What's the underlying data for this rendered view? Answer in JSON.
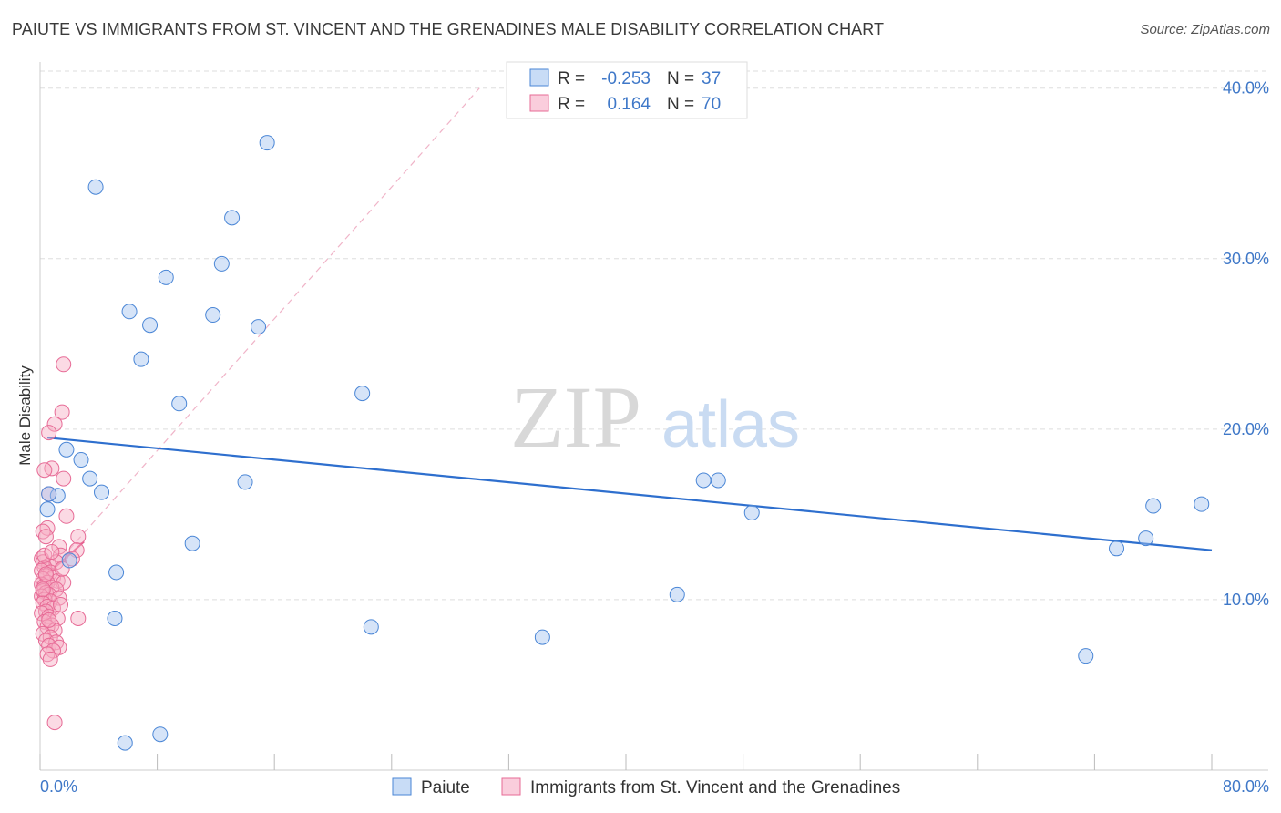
{
  "title": "PAIUTE VS IMMIGRANTS FROM ST. VINCENT AND THE GRENADINES MALE DISABILITY CORRELATION CHART",
  "source": "Source: ZipAtlas.com",
  "watermark": {
    "zip": "ZIP",
    "atlas": "atlas"
  },
  "colors": {
    "blue": "#4a86d6",
    "blue_fill": "rgba(164,196,240,0.45)",
    "blue_line": "#2e6fce",
    "pink": "#e76b96",
    "pink_fill": "rgba(246,172,196,0.45)",
    "pink_line": "#e55a8c",
    "axis_text": "#3f78c8",
    "grid": "#dedede"
  },
  "legend_box": {
    "rows": [
      {
        "r_label": "R =",
        "r_value": "-0.253",
        "n_label": "N =",
        "n_value": "37"
      },
      {
        "r_label": "R =",
        "r_value": "0.164",
        "n_label": "N =",
        "n_value": "70"
      }
    ]
  },
  "chart_data": {
    "type": "scatter",
    "title": "PAIUTE VS IMMIGRANTS FROM ST. VINCENT AND THE GRENADINES MALE DISABILITY CORRELATION CHART",
    "xlabel": "",
    "ylabel": "Male Disability",
    "xlim": [
      0,
      80
    ],
    "ylim": [
      0,
      41
    ],
    "x_tick_labels": [
      "0.0%",
      "80.0%"
    ],
    "y_ticks": [
      10,
      20,
      30,
      40
    ],
    "y_tick_labels": [
      "10.0%",
      "20.0%",
      "30.0%",
      "40.0%"
    ],
    "legend": [
      "Paiute",
      "Immigrants from St. Vincent and the Grenadines"
    ],
    "series": [
      {
        "name": "Paiute",
        "color": "#4a86d6",
        "R": -0.253,
        "N": 37,
        "trend": {
          "x": [
            0.5,
            80
          ],
          "y": [
            19.5,
            12.9
          ]
        },
        "points": [
          {
            "x": 3.8,
            "y": 34.2
          },
          {
            "x": 15.5,
            "y": 36.8
          },
          {
            "x": 13.1,
            "y": 32.4
          },
          {
            "x": 12.4,
            "y": 29.7
          },
          {
            "x": 8.6,
            "y": 28.9
          },
          {
            "x": 6.1,
            "y": 26.9
          },
          {
            "x": 7.5,
            "y": 26.1
          },
          {
            "x": 11.8,
            "y": 26.7
          },
          {
            "x": 14.9,
            "y": 26.0
          },
          {
            "x": 6.9,
            "y": 24.1
          },
          {
            "x": 9.5,
            "y": 21.5
          },
          {
            "x": 22.0,
            "y": 22.1
          },
          {
            "x": 1.2,
            "y": 16.1
          },
          {
            "x": 1.8,
            "y": 18.8
          },
          {
            "x": 2.8,
            "y": 18.2
          },
          {
            "x": 3.4,
            "y": 17.1
          },
          {
            "x": 4.2,
            "y": 16.3
          },
          {
            "x": 14.0,
            "y": 16.9
          },
          {
            "x": 45.3,
            "y": 17.0
          },
          {
            "x": 46.3,
            "y": 17.0
          },
          {
            "x": 0.5,
            "y": 15.3
          },
          {
            "x": 2.0,
            "y": 12.3
          },
          {
            "x": 10.4,
            "y": 13.3
          },
          {
            "x": 5.2,
            "y": 11.6
          },
          {
            "x": 48.6,
            "y": 15.1
          },
          {
            "x": 43.5,
            "y": 10.3
          },
          {
            "x": 76.0,
            "y": 15.5
          },
          {
            "x": 79.3,
            "y": 15.6
          },
          {
            "x": 75.5,
            "y": 13.6
          },
          {
            "x": 73.5,
            "y": 13.0
          },
          {
            "x": 5.1,
            "y": 8.9
          },
          {
            "x": 22.6,
            "y": 8.4
          },
          {
            "x": 34.3,
            "y": 7.8
          },
          {
            "x": 71.4,
            "y": 6.7
          },
          {
            "x": 5.8,
            "y": 1.6
          },
          {
            "x": 8.2,
            "y": 2.1
          },
          {
            "x": 0.6,
            "y": 16.2
          }
        ]
      },
      {
        "name": "Immigrants from St. Vincent and the Grenadines",
        "color": "#e76b96",
        "R": 0.164,
        "N": 70,
        "trend": {
          "x": [
            0.5,
            3.0
          ],
          "y": [
            11.5,
            13.4
          ]
        },
        "diagonal": {
          "x": [
            0.5,
            30.0
          ],
          "y": [
            11.5,
            40.0
          ]
        },
        "points": [
          {
            "x": 1.6,
            "y": 23.8
          },
          {
            "x": 1.5,
            "y": 21.0
          },
          {
            "x": 1.0,
            "y": 20.3
          },
          {
            "x": 0.6,
            "y": 19.8
          },
          {
            "x": 0.8,
            "y": 17.7
          },
          {
            "x": 0.3,
            "y": 17.6
          },
          {
            "x": 1.6,
            "y": 17.1
          },
          {
            "x": 0.6,
            "y": 16.2
          },
          {
            "x": 1.8,
            "y": 14.9
          },
          {
            "x": 0.5,
            "y": 14.2
          },
          {
            "x": 0.2,
            "y": 14.0
          },
          {
            "x": 0.4,
            "y": 13.7
          },
          {
            "x": 2.6,
            "y": 13.7
          },
          {
            "x": 1.3,
            "y": 13.1
          },
          {
            "x": 2.5,
            "y": 12.9
          },
          {
            "x": 1.4,
            "y": 12.6
          },
          {
            "x": 0.1,
            "y": 12.4
          },
          {
            "x": 0.2,
            "y": 12.2
          },
          {
            "x": 0.6,
            "y": 12.0
          },
          {
            "x": 1.1,
            "y": 12.2
          },
          {
            "x": 0.3,
            "y": 11.9
          },
          {
            "x": 0.1,
            "y": 11.7
          },
          {
            "x": 0.7,
            "y": 11.6
          },
          {
            "x": 0.4,
            "y": 11.4
          },
          {
            "x": 0.9,
            "y": 11.3
          },
          {
            "x": 0.2,
            "y": 11.2
          },
          {
            "x": 1.2,
            "y": 11.1
          },
          {
            "x": 0.5,
            "y": 11.0
          },
          {
            "x": 0.1,
            "y": 10.9
          },
          {
            "x": 1.6,
            "y": 11.0
          },
          {
            "x": 0.3,
            "y": 10.8
          },
          {
            "x": 0.8,
            "y": 10.7
          },
          {
            "x": 0.2,
            "y": 10.5
          },
          {
            "x": 1.1,
            "y": 10.6
          },
          {
            "x": 0.4,
            "y": 10.4
          },
          {
            "x": 0.6,
            "y": 10.3
          },
          {
            "x": 0.1,
            "y": 10.2
          },
          {
            "x": 1.3,
            "y": 10.1
          },
          {
            "x": 0.3,
            "y": 10.0
          },
          {
            "x": 0.7,
            "y": 9.9
          },
          {
            "x": 0.2,
            "y": 9.8
          },
          {
            "x": 0.5,
            "y": 9.6
          },
          {
            "x": 0.9,
            "y": 9.5
          },
          {
            "x": 0.4,
            "y": 9.3
          },
          {
            "x": 0.1,
            "y": 9.2
          },
          {
            "x": 0.6,
            "y": 9.0
          },
          {
            "x": 1.2,
            "y": 8.9
          },
          {
            "x": 2.6,
            "y": 8.9
          },
          {
            "x": 0.3,
            "y": 8.7
          },
          {
            "x": 0.8,
            "y": 8.5
          },
          {
            "x": 0.5,
            "y": 8.4
          },
          {
            "x": 1.0,
            "y": 8.2
          },
          {
            "x": 0.2,
            "y": 8.0
          },
          {
            "x": 0.7,
            "y": 7.8
          },
          {
            "x": 0.4,
            "y": 7.6
          },
          {
            "x": 1.1,
            "y": 7.5
          },
          {
            "x": 0.6,
            "y": 7.3
          },
          {
            "x": 1.3,
            "y": 7.2
          },
          {
            "x": 0.9,
            "y": 7.0
          },
          {
            "x": 0.5,
            "y": 6.8
          },
          {
            "x": 0.7,
            "y": 6.5
          },
          {
            "x": 1.0,
            "y": 2.8
          },
          {
            "x": 0.3,
            "y": 12.6
          },
          {
            "x": 1.5,
            "y": 11.8
          },
          {
            "x": 0.8,
            "y": 12.8
          },
          {
            "x": 0.2,
            "y": 10.6
          },
          {
            "x": 1.4,
            "y": 9.7
          },
          {
            "x": 0.6,
            "y": 8.8
          },
          {
            "x": 2.2,
            "y": 12.4
          },
          {
            "x": 0.4,
            "y": 11.5
          }
        ]
      }
    ]
  }
}
